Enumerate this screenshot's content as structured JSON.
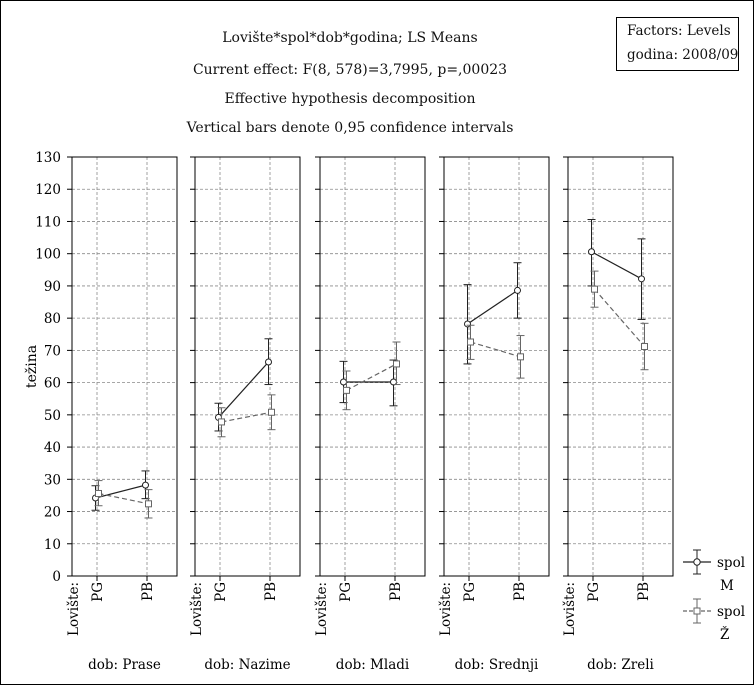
{
  "chart_data": {
    "type": "line",
    "title": "Lovište*spol*dob*godina; LS Means",
    "subtitle_lines": [
      "Current effect: F(8, 578)=3,7995, p=,00023",
      "Effective hypothesis decomposition",
      "Vertical bars denote 0,95 confidence intervals"
    ],
    "ylabel": "težina",
    "ylim": [
      0,
      130
    ],
    "yticks": [
      0,
      10,
      20,
      30,
      40,
      50,
      60,
      70,
      80,
      90,
      100,
      110,
      120,
      130
    ],
    "grid": true,
    "x_factor_label": "Lovište:",
    "categories": [
      "PG",
      "PB"
    ],
    "factor_box": {
      "line1": "Factors: Levels",
      "line2": "godina: 2008/09"
    },
    "legend": {
      "position": "bottom-right",
      "entries": [
        {
          "label_top": "spol",
          "label_bottom": "M",
          "marker": "circle",
          "style": "solid"
        },
        {
          "label_top": "spol",
          "label_bottom": "Ž",
          "marker": "square",
          "style": "dashed"
        }
      ]
    },
    "panels": [
      {
        "label": "dob: Prase",
        "series": [
          {
            "name": "M",
            "values": [
              24.2,
              28.2
            ],
            "ci_low": [
              20.4,
              24.0
            ],
            "ci_high": [
              28.0,
              32.6
            ]
          },
          {
            "name": "Ž",
            "values": [
              25.6,
              22.4
            ],
            "ci_low": [
              21.8,
              18.0
            ],
            "ci_high": [
              29.6,
              26.8
            ]
          }
        ]
      },
      {
        "label": "dob: Nazime",
        "series": [
          {
            "name": "M",
            "values": [
              49.2,
              66.4
            ],
            "ci_low": [
              45.0,
              59.4
            ],
            "ci_high": [
              53.6,
              73.6
            ]
          },
          {
            "name": "Ž",
            "values": [
              47.8,
              50.8
            ],
            "ci_low": [
              43.2,
              45.4
            ],
            "ci_high": [
              52.2,
              56.2
            ]
          }
        ]
      },
      {
        "label": "dob: Mladi",
        "series": [
          {
            "name": "M",
            "values": [
              60.2,
              60.2
            ],
            "ci_low": [
              53.8,
              52.8
            ],
            "ci_high": [
              66.6,
              67.0
            ]
          },
          {
            "name": "Ž",
            "values": [
              57.6,
              65.8
            ],
            "ci_low": [
              51.6,
              59.4
            ],
            "ci_high": [
              63.6,
              72.6
            ]
          }
        ]
      },
      {
        "label": "dob: Srednji",
        "series": [
          {
            "name": "M",
            "values": [
              78.2,
              88.6
            ],
            "ci_low": [
              65.8,
              80.0
            ],
            "ci_high": [
              90.4,
              97.2
            ]
          },
          {
            "name": "Ž",
            "values": [
              72.6,
              68.0
            ],
            "ci_low": [
              67.2,
              61.4
            ],
            "ci_high": [
              77.8,
              74.6
            ]
          }
        ]
      },
      {
        "label": "dob: Zreli",
        "series": [
          {
            "name": "M",
            "values": [
              100.6,
              92.2
            ],
            "ci_low": [
              90.0,
              79.6
            ],
            "ci_high": [
              110.6,
              104.6
            ]
          },
          {
            "name": "Ž",
            "values": [
              89.0,
              71.2
            ],
            "ci_low": [
              83.4,
              64.0
            ],
            "ci_high": [
              94.6,
              78.4
            ]
          }
        ]
      }
    ]
  }
}
